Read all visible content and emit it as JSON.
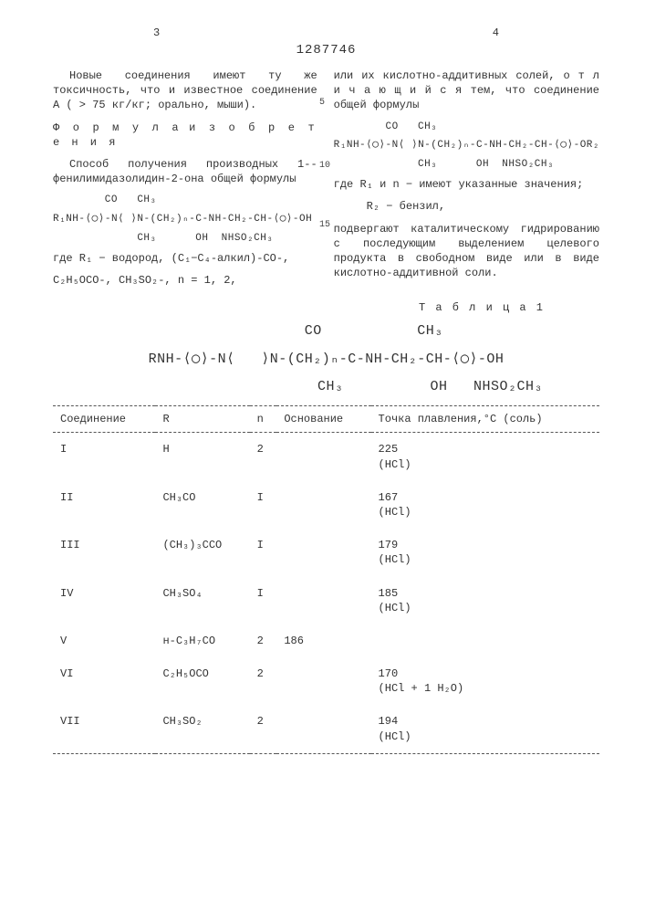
{
  "header": {
    "left_page": "3",
    "right_page": "4",
    "patent_number": "1287746"
  },
  "line_numbers": {
    "n5": "5",
    "n10": "10",
    "n15": "15"
  },
  "left_col": {
    "p1": "Новые соединения имеют ту же токсичность, что и известное соединение А ( > 75 кг/кг; орально, мыши).",
    "formula_title_a": "Ф о р м у л а",
    "formula_title_b": "и з о б р е т е н и я",
    "p2": "Способ получения производных 1--фенилимидазолидин-2-она общей формулы",
    "struct1_top": "        CO   CH₃",
    "struct1": "R₁NH-⟨◯⟩-N⟨ ⟩N-(CH₂)ₙ-C-NH-CH₂-CH-⟨◯⟩-OH",
    "struct1_bot": "             CH₃      OH  NHSO₂CH₃",
    "p3a": "где R₁ − водород, (C₁−C₄-алкил)-CO-,",
    "p3b": "C₂H₅OCO-, CH₃SO₂-, n = 1, 2,"
  },
  "right_col": {
    "p1": "или их кислотно-аддитивных солей, о т л и ч а ю щ и й с я  тем, что соединение общей формулы",
    "struct2_top": "        CO   CH₃",
    "struct2": "R₁NH-⟨◯⟩-N⟨ ⟩N-(CH₂)ₙ-C-NH-CH₂-CH-⟨◯⟩-OR₂",
    "struct2_bot": "             CH₃      OH  NHSO₂CH₃",
    "p2": "где R₁ и n − имеют указанные значения;",
    "p3": "R₂ − бензил,",
    "p4": "подвергают каталитическому гидрированию с последующим выделением целевого продукта в свободном виде или в виде кислотно-аддитивной соли."
  },
  "table": {
    "caption": "Т а б л и ц а 1",
    "struct_top": "           CO           CH₃",
    "struct_mid": "RNH-⟨◯⟩-N⟨   ⟩N-(CH₂)ₙ-C-NH-CH₂-CH-⟨◯⟩-OH",
    "struct_bot": "                        CH₃          OH   NHSO₂CH₃",
    "columns": [
      "Соединение",
      "R",
      "n",
      "Основание",
      "Точка плавления,°C (соль)"
    ],
    "rows": [
      {
        "c": "I",
        "r": "H",
        "n": "2",
        "base": "",
        "mp": "225",
        "salt": "(HCl)"
      },
      {
        "c": "II",
        "r": "CH₃CO",
        "n": "I",
        "base": "",
        "mp": "167",
        "salt": "(HCl)"
      },
      {
        "c": "III",
        "r": "(CH₃)₃CCO",
        "n": "I",
        "base": "",
        "mp": "179",
        "salt": "(HCl)"
      },
      {
        "c": "IV",
        "r": "CH₃SO₄",
        "n": "I",
        "base": "",
        "mp": "185",
        "salt": "(HCl)"
      },
      {
        "c": "V",
        "r": "н-C₃H₇CO",
        "n": "2",
        "base": "186",
        "mp": "",
        "salt": ""
      },
      {
        "c": "VI",
        "r": "C₂H₅OCO",
        "n": "2",
        "base": "",
        "mp": "170",
        "salt": "(HCl + 1 H₂O)"
      },
      {
        "c": "VII",
        "r": "CH₃SO₂",
        "n": "2",
        "base": "",
        "mp": "194",
        "salt": "(HCl)"
      }
    ]
  }
}
